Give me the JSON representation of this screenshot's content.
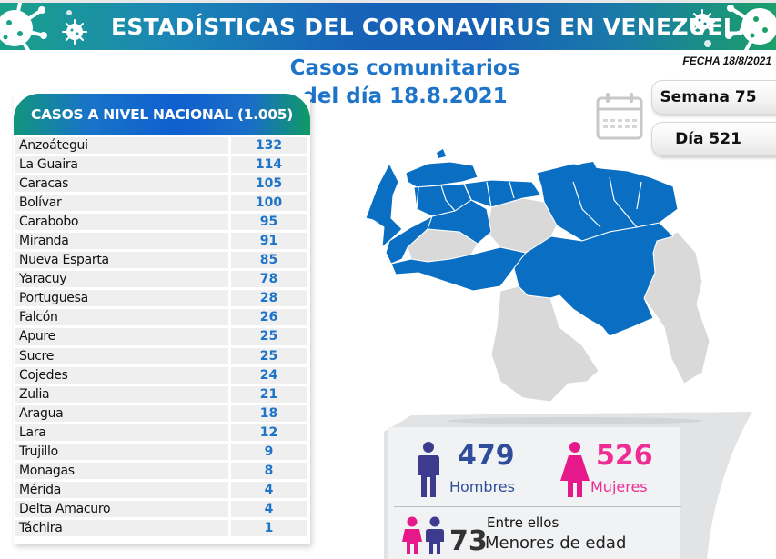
{
  "banner": {
    "title": "ESTADÍSTICAS DEL CORONAVIRUS EN VENEZUELA"
  },
  "subtitle": {
    "line1": "Casos comunitarios",
    "line2": "del día 18.8.2021"
  },
  "date_label": "FECHA 18/8/2021",
  "week_label": "Semana 75",
  "day_label": "Día 521",
  "table": {
    "header": "CASOS A NIVEL NACIONAL (1.005)",
    "rows": [
      {
        "state": "Anzoátegui",
        "cases": "132"
      },
      {
        "state": "La Guaira",
        "cases": "114"
      },
      {
        "state": "Caracas",
        "cases": "105"
      },
      {
        "state": "Bolívar",
        "cases": "100"
      },
      {
        "state": "Carabobo",
        "cases": "95"
      },
      {
        "state": "Miranda",
        "cases": "91"
      },
      {
        "state": "Nueva Esparta",
        "cases": "85"
      },
      {
        "state": "Yaracuy",
        "cases": "78"
      },
      {
        "state": "Portuguesa",
        "cases": "28"
      },
      {
        "state": "Falcón",
        "cases": "26"
      },
      {
        "state": "Apure",
        "cases": "25"
      },
      {
        "state": "Sucre",
        "cases": "25"
      },
      {
        "state": "Cojedes",
        "cases": "24"
      },
      {
        "state": "Zulia",
        "cases": "21"
      },
      {
        "state": "Aragua",
        "cases": "18"
      },
      {
        "state": "Lara",
        "cases": "12"
      },
      {
        "state": "Trujillo",
        "cases": "9"
      },
      {
        "state": "Monagas",
        "cases": "8"
      },
      {
        "state": "Mérida",
        "cases": "4"
      },
      {
        "state": "Delta Amacuro",
        "cases": "4"
      },
      {
        "state": "Táchira",
        "cases": "1"
      }
    ]
  },
  "gender": {
    "men_count": "479",
    "men_label": "Hombres",
    "women_count": "526",
    "women_label": "Mujeres",
    "minors_intro": "Entre ellos",
    "minors_count": "73",
    "minors_label": "Menores de edad"
  },
  "colors": {
    "accent_blue": "#1e74c8",
    "map_blue": "#0a6fc2",
    "map_gray": "#d9d9d9",
    "men": "#3d3b8e",
    "women": "#e6198a"
  },
  "map": {
    "legend_meaning": "blue = states with cases, gray = no cases"
  }
}
